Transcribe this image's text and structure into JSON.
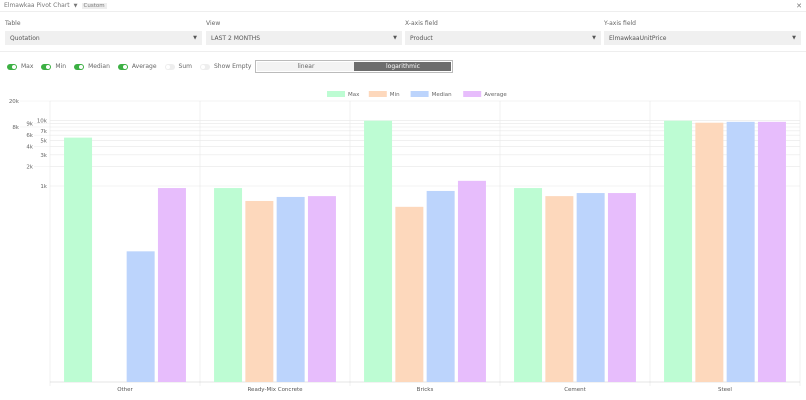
{
  "header": {
    "title": "Elmawkaa Pivot Chart",
    "badge": "Custom",
    "close_icon": "close-icon"
  },
  "fields": {
    "table": {
      "label": "Table",
      "value": "Quotation"
    },
    "view": {
      "label": "View",
      "value": "LAST 2 MONTHS"
    },
    "xaxis": {
      "label": "X-axis field",
      "value": "Product"
    },
    "yaxis": {
      "label": "Y-axis field",
      "value": "ElmawkaaUnitPrice"
    }
  },
  "toggles": [
    {
      "label": "Max",
      "on": true
    },
    {
      "label": "Min",
      "on": true
    },
    {
      "label": "Median",
      "on": true
    },
    {
      "label": "Average",
      "on": true
    },
    {
      "label": "Sum",
      "on": false
    },
    {
      "label": "Show Empty",
      "on": false
    }
  ],
  "scale": {
    "linear": "linear",
    "log": "logarithmic",
    "selected": "logarithmic"
  },
  "chart_data": {
    "type": "bar",
    "categories": [
      "Other",
      "Ready-Mix Concrete",
      "Bricks",
      "Cement",
      "Steel"
    ],
    "series": [
      {
        "name": "Max",
        "color": "#bdfcd3",
        "values": [
          5500,
          930,
          10000,
          930,
          10000
        ]
      },
      {
        "name": "Min",
        "color": "#fdd8bc",
        "values": [
          0,
          590,
          480,
          700,
          9300
        ]
      },
      {
        "name": "Median",
        "color": "#bcd4fc",
        "values": [
          100,
          680,
          840,
          780,
          9600
        ]
      },
      {
        "name": "Average",
        "color": "#e7bdfc",
        "values": [
          930,
          700,
          1200,
          780,
          9600
        ]
      }
    ],
    "yscale": "log",
    "ylim": [
      1,
      20000
    ],
    "yticks": [
      "20k",
      "10k",
      "9k",
      "8k",
      "7k",
      "6k",
      "5k",
      "4k",
      "3k",
      "2k",
      "1k"
    ],
    "ytick_values": [
      20000,
      10000,
      9000,
      8000,
      7000,
      6000,
      5000,
      4000,
      3000,
      2000,
      1000
    ],
    "grid": true,
    "legend": "top"
  }
}
